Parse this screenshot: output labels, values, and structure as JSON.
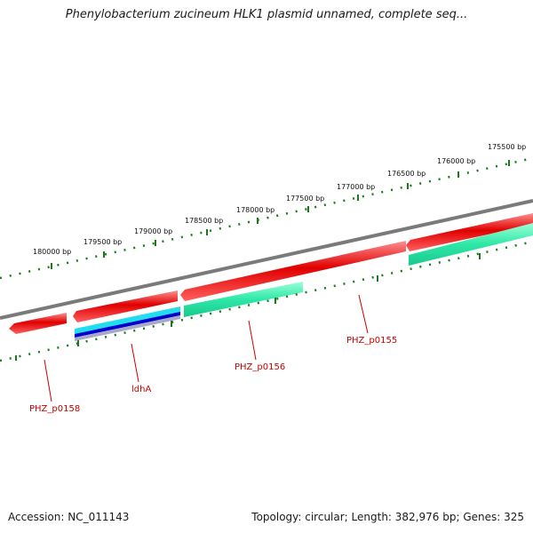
{
  "header": {
    "title": "Phenylobacterium zucineum HLK1 plasmid unnamed, complete seq..."
  },
  "footer": {
    "accession": "Accession: NC_011143",
    "summary": "Topology: circular; Length: 382,976 bp; Genes: 325"
  },
  "scale_labels": [
    "180000 bp",
    "179500 bp",
    "179000 bp",
    "178500 bp",
    "178000 bp",
    "177500 bp",
    "177000 bp",
    "176500 bp",
    "176000 bp",
    "175500 bp"
  ],
  "genes": [
    {
      "name": "PHZ_p0158",
      "strand": "minus"
    },
    {
      "name": "ldhA",
      "strand": "minus"
    },
    {
      "name": "PHZ_p0156",
      "strand": "minus"
    },
    {
      "name": "PHZ_p0155",
      "strand": "minus"
    }
  ],
  "colors": {
    "gene_red": "#e00000",
    "gene_teal": "#2ee8a8",
    "gene_cyan": "#22ddee",
    "gene_blue": "#0000cc",
    "backbone": "#808080",
    "ticks": "#1a7a1a",
    "label": "#cc0000"
  }
}
